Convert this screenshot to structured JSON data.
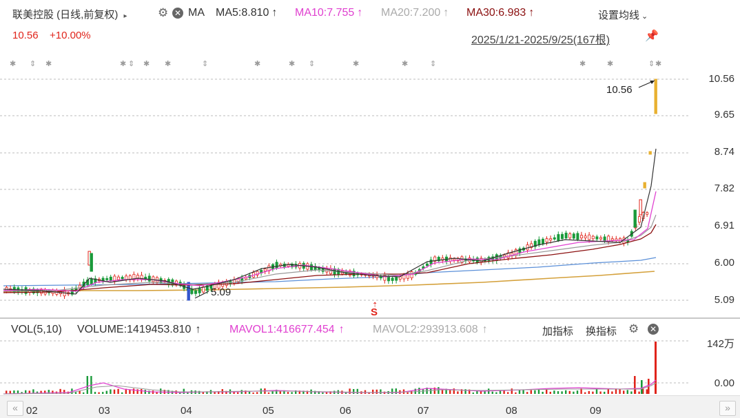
{
  "header": {
    "stock_title": "联美控股 (日线,前复权)",
    "ma_label": "MA",
    "ma5": "MA5:8.810",
    "ma10": "MA10:7.755",
    "ma20": "MA20:7.200",
    "ma30": "MA30:6.983",
    "arrow": "↑",
    "settings_label": "设置均线",
    "price": "10.56",
    "change": "+10.00%",
    "range": "2025/1/21-2025/9/25(167根)"
  },
  "price_axis": [
    "10.56",
    "9.65",
    "8.74",
    "7.82",
    "6.91",
    "6.00",
    "5.09"
  ],
  "annotations": {
    "high": "10.56",
    "low": "5.09",
    "signal": "S"
  },
  "volume_header": {
    "vol": "VOL(5,10)",
    "volume": "VOLUME:1419453.810",
    "mavol1": "MAVOL1:416677.454",
    "mavol2": "MAVOL2:293913.608",
    "arrow": "↑",
    "add_indicator": "加指标",
    "switch_indicator": "换指标"
  },
  "volume_axis": [
    "142万",
    "0.00"
  ],
  "months": [
    "02",
    "03",
    "04",
    "05",
    "06",
    "07",
    "08",
    "09"
  ],
  "nav": {
    "left": "«",
    "right": "»"
  },
  "colors": {
    "up": "#e0241b",
    "down": "#1a9a3a",
    "ma5": "#333333",
    "ma10": "#e040d0",
    "ma20": "#999999",
    "ma30": "#8b1010",
    "ma60": "#5a8fd8",
    "ma120": "#d4a03a"
  },
  "chart_data": {
    "type": "candlestick",
    "x_range": [
      "2025/1/21",
      "2025/9/25"
    ],
    "bar_count": 167,
    "y_ticks": [
      10.56,
      9.65,
      8.74,
      7.82,
      6.91,
      6.0,
      5.09
    ],
    "last_close": 10.56,
    "low_marker": 5.09,
    "volume_max_label": "142万"
  }
}
